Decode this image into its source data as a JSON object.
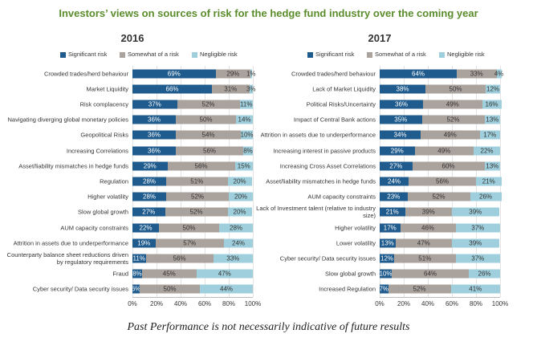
{
  "title": "Investors’ views on sources of risk for the hedge fund industry over the coming year",
  "chart_data": [
    {
      "type": "bar",
      "orientation": "horizontal",
      "stacked": true,
      "title": "2016",
      "categories": [
        "Crowded trades/herd behaviour",
        "Market Liquidity",
        "Risk complacency",
        "Navigating diverging global monetary policies",
        "Geopolitical Risks",
        "Increasing Correlations",
        "Asset/liability mismatches in hedge funds",
        "Regulation",
        "Higher volatility",
        "Slow global growth",
        "AUM capacity constraints",
        "Attrition in assets due to underperformance",
        "Counterparty balance sheet reductions driven by regulatory requirements",
        "Fraud",
        "Cyber security/ Data security issues"
      ],
      "series": [
        {
          "name": "Significant risk",
          "color": "#1f5b8c",
          "values": [
            69,
            66,
            37,
            36,
            36,
            36,
            29,
            28,
            28,
            27,
            22,
            19,
            11,
            8,
            6
          ],
          "value_labels": [
            "69%",
            "66%",
            "37%",
            "36%",
            "36%",
            "36%",
            "29%",
            "28%",
            "28%",
            "27%",
            "22%",
            "19%",
            "11%",
            "8%",
            "6%"
          ]
        },
        {
          "name": "Somewhat of a risk",
          "color": "#aaa29d",
          "values": [
            29,
            31,
            52,
            50,
            54,
            56,
            56,
            51,
            52,
            52,
            50,
            57,
            56,
            45,
            50
          ],
          "value_labels": [
            "29%",
            "31%",
            "52%",
            "50%",
            "54%",
            "56%",
            "56%",
            "51%",
            "52%",
            "52%",
            "50%",
            "57%",
            "56%",
            "45%",
            "50%"
          ]
        },
        {
          "name": "Negligible risk",
          "color": "#9fcfdc",
          "values": [
            1,
            3,
            11,
            14,
            10,
            8,
            15,
            20,
            20,
            20,
            28,
            24,
            33,
            47,
            44
          ],
          "value_labels": [
            "1%",
            "3%",
            "11%",
            "14%",
            "10%",
            "8%",
            "15%",
            "20%",
            "20%",
            "20%",
            "28%",
            "24%",
            "33%",
            "47%",
            "44%"
          ]
        }
      ],
      "xlim": [
        0,
        100
      ],
      "xticks": [
        {
          "value": 0,
          "label": "0%"
        },
        {
          "value": 20,
          "label": "20%"
        },
        {
          "value": 40,
          "label": "40%"
        },
        {
          "value": 60,
          "label": "60%"
        },
        {
          "value": 80,
          "label": "80%"
        },
        {
          "value": 100,
          "label": "100%"
        }
      ],
      "grid": true
    },
    {
      "type": "bar",
      "orientation": "horizontal",
      "stacked": true,
      "title": "2017",
      "categories": [
        "Crowded trades/herd behaviour",
        "Lack of Market Liquidity",
        "Political Risks/Uncertainty",
        "Impact of Central Bank actions",
        "Attrition in assets due to underperformance",
        "Increasing interest in passive products",
        "Increasing Cross Asset Correlations",
        "Asset/liability mismatches in hedge funds",
        "AUM capacity constraints",
        "Lack of Investment talent (relative to industry size)",
        "Higher volatility",
        "Lower volatility",
        "Cyber security/ Data security issues",
        "Slow global growth",
        "Increased Regulation"
      ],
      "series": [
        {
          "name": "Significant risk",
          "color": "#1f5b8c",
          "values": [
            64,
            38,
            36,
            35,
            34,
            29,
            27,
            24,
            23,
            21,
            17,
            13,
            12,
            10,
            7
          ],
          "value_labels": [
            "64%",
            "38%",
            "36%",
            "35%",
            "34%",
            "29%",
            "27%",
            "24%",
            "23%",
            "21%",
            "17%",
            "13%",
            "12%",
            "10%",
            "7%"
          ]
        },
        {
          "name": "Somewhat of a risk",
          "color": "#aaa29d",
          "values": [
            33,
            50,
            49,
            52,
            49,
            49,
            60,
            56,
            52,
            39,
            46,
            47,
            51,
            64,
            52
          ],
          "value_labels": [
            "33%",
            "50%",
            "49%",
            "52%",
            "49%",
            "49%",
            "60%",
            "56%",
            "52%",
            "39%",
            "46%",
            "47%",
            "51%",
            "64%",
            "52%"
          ]
        },
        {
          "name": "Negligible risk",
          "color": "#9fcfdc",
          "values": [
            4,
            12,
            16,
            13,
            17,
            22,
            13,
            21,
            26,
            39,
            37,
            39,
            37,
            26,
            41
          ],
          "value_labels": [
            "4%",
            "12%",
            "16%",
            "13%",
            "17%",
            "22%",
            "13%",
            "21%",
            "26%",
            "39%",
            "37%",
            "39%",
            "37%",
            "26%",
            "41%"
          ]
        }
      ],
      "xlim": [
        0,
        100
      ],
      "xticks": [
        {
          "value": 0,
          "label": "0%"
        },
        {
          "value": 20,
          "label": "20%"
        },
        {
          "value": 40,
          "label": "40%"
        },
        {
          "value": 60,
          "label": "60%"
        },
        {
          "value": 80,
          "label": "80%"
        },
        {
          "value": 100,
          "label": "100%"
        }
      ],
      "grid": true
    }
  ],
  "footnote": "Past Performance is not necessarily indicative of future results"
}
